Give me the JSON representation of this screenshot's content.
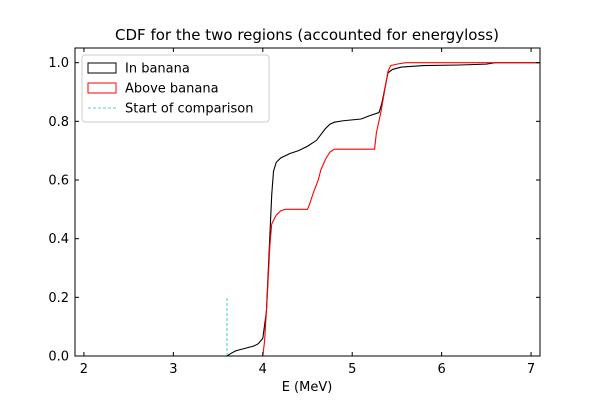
{
  "chart_data": {
    "type": "line",
    "title": "CDF for the two regions (accounted for energyloss)",
    "xlabel": "E (MeV)",
    "ylabel": "",
    "xlim": [
      1.9,
      7.1
    ],
    "ylim": [
      0.0,
      1.05
    ],
    "x_ticks": [
      2,
      3,
      4,
      5,
      6,
      7
    ],
    "y_ticks": [
      0.0,
      0.2,
      0.4,
      0.6,
      0.8,
      1.0
    ],
    "x_tick_labels": [
      "2",
      "3",
      "4",
      "5",
      "6",
      "7"
    ],
    "y_tick_labels": [
      "0.0",
      "0.2",
      "0.4",
      "0.6",
      "0.8",
      "1.0"
    ],
    "grid": false,
    "legend_position": "top-left",
    "series": [
      {
        "name": "In banana",
        "color": "#000000",
        "style": "solid",
        "points": [
          [
            1.9,
            0.0
          ],
          [
            3.6,
            0.0
          ],
          [
            3.65,
            0.01
          ],
          [
            3.7,
            0.018
          ],
          [
            3.8,
            0.026
          ],
          [
            3.9,
            0.034
          ],
          [
            3.95,
            0.042
          ],
          [
            4.0,
            0.06
          ],
          [
            4.04,
            0.15
          ],
          [
            4.07,
            0.35
          ],
          [
            4.1,
            0.55
          ],
          [
            4.12,
            0.63
          ],
          [
            4.15,
            0.66
          ],
          [
            4.2,
            0.675
          ],
          [
            4.3,
            0.69
          ],
          [
            4.4,
            0.7
          ],
          [
            4.5,
            0.715
          ],
          [
            4.6,
            0.735
          ],
          [
            4.65,
            0.755
          ],
          [
            4.7,
            0.775
          ],
          [
            4.75,
            0.79
          ],
          [
            4.8,
            0.797
          ],
          [
            4.9,
            0.802
          ],
          [
            5.0,
            0.805
          ],
          [
            5.1,
            0.808
          ],
          [
            5.2,
            0.82
          ],
          [
            5.3,
            0.83
          ],
          [
            5.33,
            0.86
          ],
          [
            5.37,
            0.92
          ],
          [
            5.4,
            0.965
          ],
          [
            5.45,
            0.977
          ],
          [
            5.55,
            0.985
          ],
          [
            5.8,
            0.99
          ],
          [
            6.2,
            0.992
          ],
          [
            6.5,
            0.995
          ],
          [
            6.6,
            1.0
          ],
          [
            7.1,
            1.0
          ]
        ]
      },
      {
        "name": "Above banana",
        "color": "#ff0000",
        "style": "solid",
        "points": [
          [
            1.9,
            0.0
          ],
          [
            4.0,
            0.0
          ],
          [
            4.02,
            0.05
          ],
          [
            4.05,
            0.2
          ],
          [
            4.08,
            0.38
          ],
          [
            4.1,
            0.45
          ],
          [
            4.15,
            0.48
          ],
          [
            4.2,
            0.495
          ],
          [
            4.25,
            0.5
          ],
          [
            4.5,
            0.5
          ],
          [
            4.52,
            0.515
          ],
          [
            4.57,
            0.56
          ],
          [
            4.62,
            0.6
          ],
          [
            4.65,
            0.635
          ],
          [
            4.7,
            0.67
          ],
          [
            4.75,
            0.695
          ],
          [
            4.8,
            0.705
          ],
          [
            5.0,
            0.705
          ],
          [
            5.2,
            0.705
          ],
          [
            5.25,
            0.705
          ],
          [
            5.27,
            0.76
          ],
          [
            5.32,
            0.83
          ],
          [
            5.36,
            0.9
          ],
          [
            5.4,
            0.97
          ],
          [
            5.43,
            0.99
          ],
          [
            5.5,
            0.995
          ],
          [
            5.6,
            1.0
          ],
          [
            7.1,
            1.0
          ]
        ]
      },
      {
        "name": "Start of comparison",
        "color": "#17becf",
        "style": "dashed",
        "points": [
          [
            3.6,
            0.0
          ],
          [
            3.6,
            0.2
          ]
        ]
      }
    ]
  }
}
